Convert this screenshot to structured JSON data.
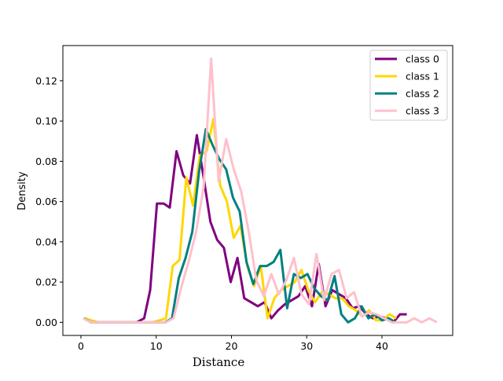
{
  "chart_data": {
    "type": "line",
    "title": "",
    "xlabel": "Distance",
    "ylabel": "Density",
    "xlim": [
      -2.4,
      49.4
    ],
    "ylim": [
      -0.0065,
      0.1375
    ],
    "xticks": [
      0,
      10,
      20,
      30,
      40
    ],
    "xtick_labels": [
      "0",
      "10",
      "20",
      "30",
      "40"
    ],
    "yticks": [
      0.0,
      0.02,
      0.04,
      0.06,
      0.08,
      0.1,
      0.12
    ],
    "ytick_labels": [
      "0.00",
      "0.02",
      "0.04",
      "0.06",
      "0.08",
      "0.10",
      "0.12"
    ],
    "grid": false,
    "legend_position": "top-right",
    "series": [
      {
        "name": "class 0",
        "color": "#800080",
        "x": [
          0.4,
          1.4,
          2.4,
          3.4,
          4.4,
          5.4,
          6.4,
          7.4,
          8.4,
          9.2,
          10.1,
          11.0,
          11.8,
          12.7,
          13.6,
          14.5,
          15.4,
          16.3,
          17.2,
          18.1,
          19.0,
          19.9,
          20.8,
          21.7,
          22.6,
          23.5,
          24.4,
          25.3,
          26.2,
          27.1,
          28.0,
          28.9,
          29.8,
          30.7,
          31.6,
          32.5,
          33.4,
          34.3,
          35.2,
          36.1,
          37.0,
          37.9,
          38.8,
          39.7,
          40.6,
          41.5,
          42.4,
          43.3
        ],
        "y": [
          0.002,
          0.0,
          0.0,
          0.0,
          0.0,
          0.0,
          0.0,
          0.0,
          0.002,
          0.016,
          0.059,
          0.059,
          0.057,
          0.085,
          0.073,
          0.069,
          0.093,
          0.072,
          0.05,
          0.041,
          0.037,
          0.02,
          0.032,
          0.012,
          0.01,
          0.008,
          0.01,
          0.002,
          0.006,
          0.009,
          0.011,
          0.013,
          0.018,
          0.008,
          0.029,
          0.008,
          0.016,
          0.014,
          0.012,
          0.007,
          0.008,
          0.004,
          0.002,
          0.003,
          0.002,
          0.0,
          0.004,
          0.004
        ]
      },
      {
        "name": "class 1",
        "color": "#ffd700",
        "x": [
          0.5,
          1.4,
          2.3,
          3.2,
          4.1,
          5.0,
          5.9,
          6.8,
          7.7,
          8.6,
          9.5,
          10.4,
          11.3,
          12.2,
          13.1,
          14.0,
          14.9,
          15.8,
          16.7,
          17.6,
          18.5,
          19.4,
          20.3,
          21.2,
          22.1,
          23.0,
          23.9,
          24.8,
          25.7,
          26.6,
          27.5,
          28.4,
          29.3,
          30.2,
          31.1,
          32.0,
          32.9,
          33.8,
          34.7,
          35.6,
          36.5,
          37.4,
          38.3,
          39.2,
          40.1,
          41.0,
          41.9
        ],
        "y": [
          0.002,
          0.001,
          0.0,
          0.0,
          0.0,
          0.0,
          0.0,
          0.0,
          0.0,
          0.0,
          0.0,
          0.001,
          0.002,
          0.028,
          0.031,
          0.072,
          0.058,
          0.083,
          0.085,
          0.101,
          0.068,
          0.06,
          0.042,
          0.048,
          0.028,
          0.018,
          0.028,
          0.002,
          0.012,
          0.016,
          0.018,
          0.02,
          0.026,
          0.016,
          0.01,
          0.015,
          0.014,
          0.012,
          0.012,
          0.008,
          0.006,
          0.003,
          0.006,
          0.001,
          0.001,
          0.004,
          0.002
        ]
      },
      {
        "name": "class 2",
        "color": "#008080",
        "x": [
          0.4,
          1.3,
          2.2,
          3.1,
          4.0,
          4.9,
          5.8,
          6.7,
          7.6,
          8.5,
          9.4,
          10.3,
          11.2,
          12.1,
          13.0,
          13.9,
          14.8,
          15.7,
          16.6,
          17.5,
          18.4,
          19.3,
          20.2,
          21.1,
          22.0,
          22.9,
          23.8,
          24.7,
          25.6,
          26.5,
          27.4,
          28.3,
          29.2,
          30.1,
          31.0,
          31.9,
          32.8,
          33.7,
          34.6,
          35.5,
          36.4,
          37.3,
          38.2,
          39.1,
          40.0,
          40.9,
          41.8
        ],
        "y": [
          0.002,
          0.0,
          0.0,
          0.0,
          0.0,
          0.0,
          0.0,
          0.0,
          0.0,
          0.0,
          0.0,
          0.0,
          0.0,
          0.002,
          0.022,
          0.032,
          0.045,
          0.075,
          0.096,
          0.088,
          0.081,
          0.076,
          0.062,
          0.055,
          0.03,
          0.019,
          0.028,
          0.028,
          0.03,
          0.036,
          0.007,
          0.024,
          0.022,
          0.024,
          0.017,
          0.013,
          0.011,
          0.023,
          0.004,
          0.0,
          0.002,
          0.008,
          0.002,
          0.004,
          0.001,
          0.002,
          0.0
        ]
      },
      {
        "name": "class 3",
        "color": "#ffc0cb",
        "x": [
          0.3,
          1.3,
          2.3,
          3.3,
          4.3,
          5.3,
          6.3,
          7.3,
          8.3,
          9.3,
          10.3,
          11.3,
          12.3,
          13.3,
          14.3,
          15.3,
          16.3,
          17.3,
          18.3,
          19.3,
          20.3,
          21.3,
          22.3,
          23.3,
          24.3,
          25.3,
          26.3,
          27.3,
          28.3,
          29.3,
          30.3,
          31.3,
          32.3,
          33.3,
          34.3,
          35.3,
          36.3,
          37.3,
          38.3,
          39.3,
          40.3,
          41.3,
          42.3,
          43.3,
          44.3,
          45.3,
          46.3,
          47.3
        ],
        "y": [
          0.002,
          0.0,
          0.0,
          0.0,
          0.0,
          0.0,
          0.0,
          0.0,
          0.0,
          0.0,
          0.0,
          0.0,
          0.002,
          0.017,
          0.03,
          0.045,
          0.067,
          0.131,
          0.07,
          0.091,
          0.076,
          0.065,
          0.045,
          0.021,
          0.013,
          0.024,
          0.014,
          0.021,
          0.032,
          0.014,
          0.009,
          0.034,
          0.011,
          0.024,
          0.026,
          0.012,
          0.015,
          0.003,
          0.005,
          0.004,
          0.002,
          0.0,
          0.0,
          0.0,
          0.002,
          0.0,
          0.002,
          0.0
        ]
      }
    ]
  }
}
